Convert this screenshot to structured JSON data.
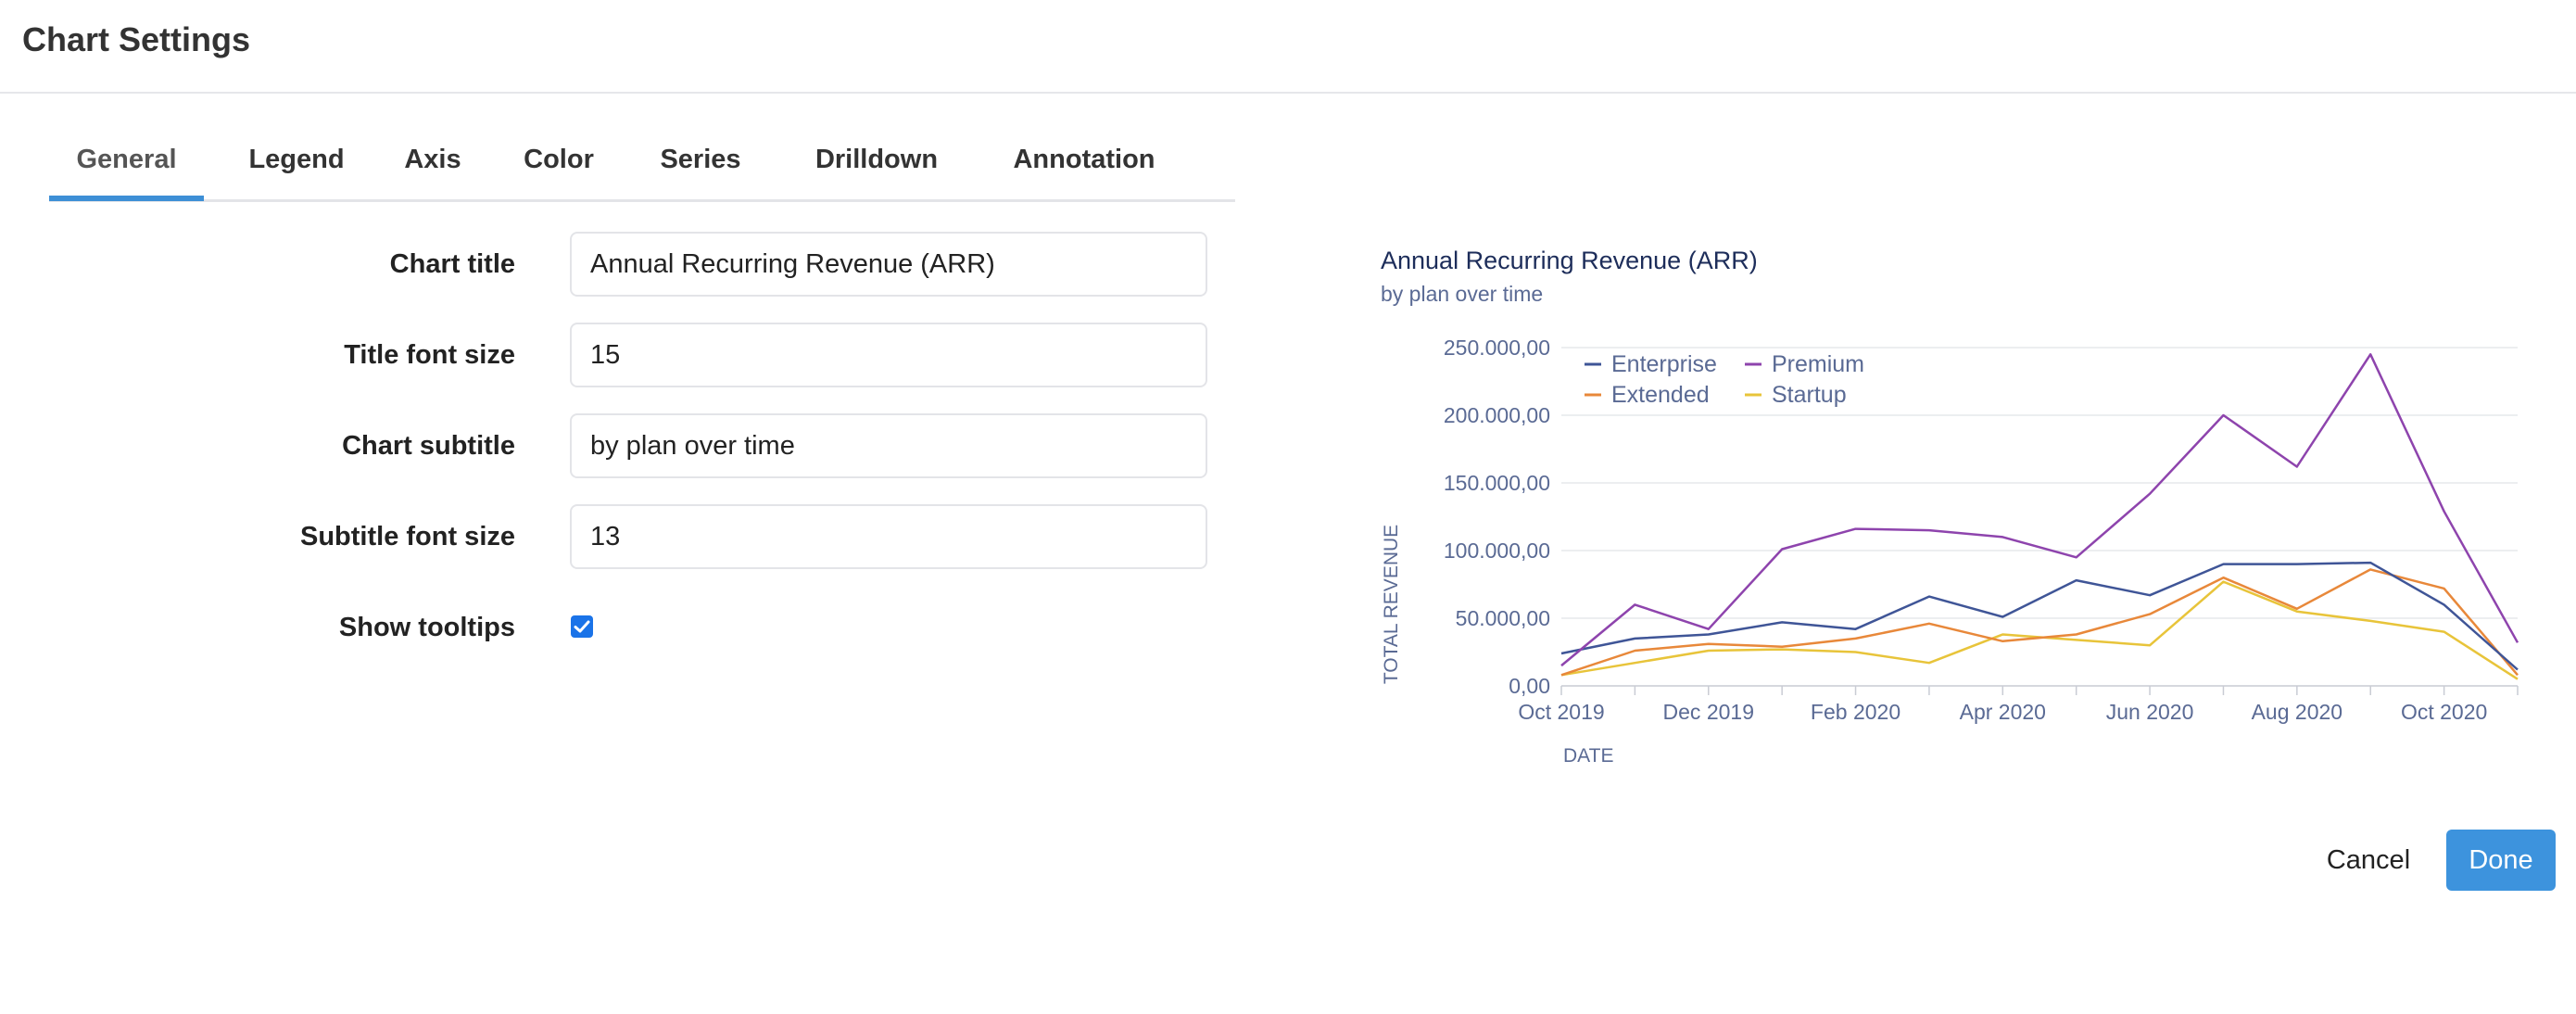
{
  "header": {
    "title": "Chart Settings"
  },
  "tabs": [
    {
      "label": "General",
      "active": true
    },
    {
      "label": "Legend"
    },
    {
      "label": "Axis"
    },
    {
      "label": "Color"
    },
    {
      "label": "Series"
    },
    {
      "label": "Drilldown"
    },
    {
      "label": "Annotation"
    }
  ],
  "form": {
    "chart_title": {
      "label": "Chart title",
      "value": "Annual Recurring Revenue (ARR)"
    },
    "title_font_size": {
      "label": "Title font size",
      "value": "15"
    },
    "chart_subtitle": {
      "label": "Chart subtitle",
      "value": "by plan over time"
    },
    "subtitle_font_size": {
      "label": "Subtitle font size",
      "value": "13"
    },
    "show_tooltips": {
      "label": "Show tooltips",
      "checked": true
    }
  },
  "buttons": {
    "cancel": "Cancel",
    "done": "Done"
  },
  "colors": {
    "accent": "#3d8fd6",
    "enterprise": "#3f5597",
    "premium": "#8e44ad",
    "extended": "#e8883a",
    "startup": "#e8c43a"
  },
  "chart_data": {
    "type": "line",
    "title": "Annual Recurring Revenue (ARR)",
    "subtitle": "by plan over time",
    "xlabel": "DATE",
    "ylabel": "TOTAL REVENUE",
    "x": [
      "Oct 2019",
      "Nov 2019",
      "Dec 2019",
      "Jan 2020",
      "Feb 2020",
      "Mar 2020",
      "Apr 2020",
      "May 2020",
      "Jun 2020",
      "Jul 2020",
      "Aug 2020",
      "Sep 2020",
      "Oct 2020",
      "Nov 2020"
    ],
    "x_tick_labels": [
      "Oct 2019",
      "Dec 2019",
      "Feb 2020",
      "Apr 2020",
      "Jun 2020",
      "Aug 2020",
      "Oct 2020"
    ],
    "y_tick_labels": [
      "0,00",
      "50.000,00",
      "100.000,00",
      "150.000,00",
      "200.000,00",
      "250.000,00"
    ],
    "ylim": [
      0,
      250000
    ],
    "grid": true,
    "legend_position": "top-left",
    "series": [
      {
        "name": "Enterprise",
        "values": [
          24000,
          35000,
          38000,
          47000,
          42000,
          66000,
          51000,
          78000,
          67000,
          90000,
          90000,
          91000,
          60000,
          12000
        ]
      },
      {
        "name": "Premium",
        "values": [
          15000,
          60000,
          42000,
          101000,
          116000,
          115000,
          110000,
          95000,
          142000,
          200000,
          162000,
          245000,
          129000,
          32000
        ]
      },
      {
        "name": "Extended",
        "values": [
          8000,
          26000,
          31000,
          29000,
          35000,
          46000,
          33000,
          38000,
          53000,
          80000,
          57000,
          86000,
          72000,
          8000
        ]
      },
      {
        "name": "Startup",
        "values": [
          8000,
          17000,
          26000,
          27000,
          25000,
          17000,
          38000,
          34000,
          30000,
          77000,
          55000,
          48000,
          40000,
          5000
        ]
      }
    ]
  }
}
